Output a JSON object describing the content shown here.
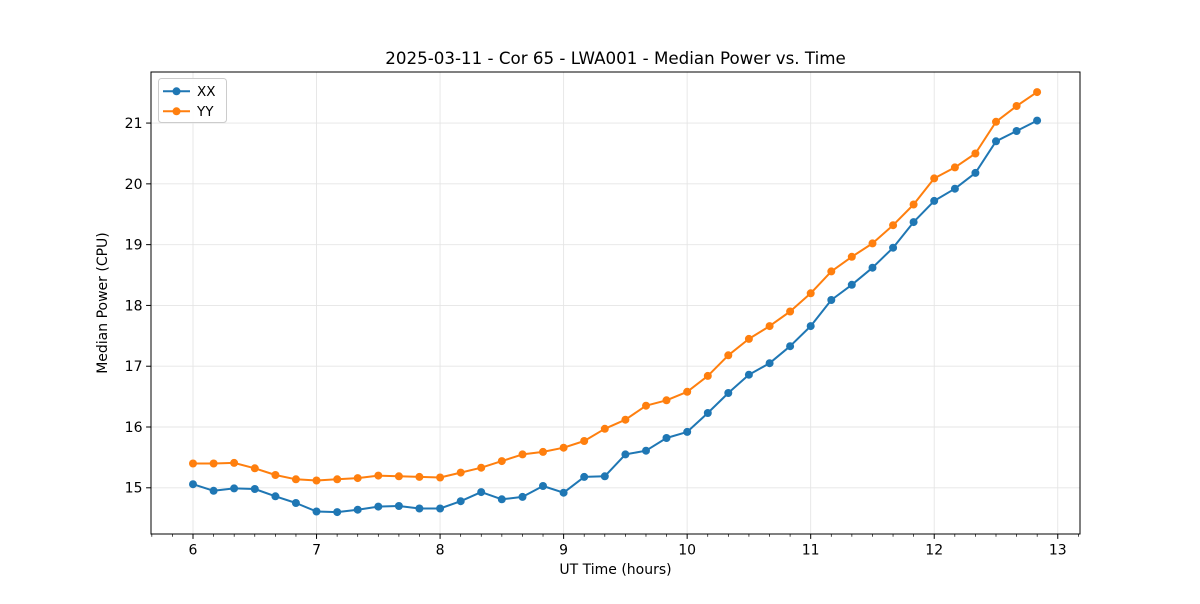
{
  "chart_data": {
    "type": "line",
    "title": "2025-03-11 - Cor 65 - LWA001 - Median Power vs. Time",
    "xlabel": "UT Time (hours)",
    "ylabel": "Median Power (CPU)",
    "xlim": [
      5.66,
      13.18
    ],
    "ylim": [
      14.24,
      21.84
    ],
    "xticks": [
      6,
      7,
      8,
      9,
      10,
      11,
      12,
      13
    ],
    "yticks": [
      15,
      16,
      17,
      18,
      19,
      20,
      21
    ],
    "x_minor_step_hours": 0.1667,
    "grid": true,
    "grid_color": "#e5e5e5",
    "legend_position": "upper left",
    "x": [
      6.0,
      6.167,
      6.333,
      6.5,
      6.667,
      6.833,
      7.0,
      7.167,
      7.333,
      7.5,
      7.667,
      7.833,
      8.0,
      8.167,
      8.333,
      8.5,
      8.667,
      8.833,
      9.0,
      9.167,
      9.333,
      9.5,
      9.667,
      9.833,
      10.0,
      10.167,
      10.333,
      10.5,
      10.667,
      10.833,
      11.0,
      11.167,
      11.333,
      11.5,
      11.667,
      11.833,
      12.0,
      12.167,
      12.333,
      12.5,
      12.667,
      12.833
    ],
    "series": [
      {
        "name": "XX",
        "color": "#1f77b4",
        "values": [
          15.06,
          14.95,
          14.99,
          14.98,
          14.86,
          14.75,
          14.61,
          14.6,
          14.64,
          14.69,
          14.7,
          14.66,
          14.66,
          14.78,
          14.93,
          14.81,
          14.85,
          15.03,
          14.92,
          15.18,
          15.19,
          15.55,
          15.61,
          15.82,
          15.92,
          16.23,
          16.56,
          16.86,
          17.05,
          17.33,
          17.66,
          18.09,
          18.34,
          18.62,
          18.95,
          19.37,
          19.72,
          19.92,
          20.18,
          20.7,
          20.87,
          21.04
        ]
      },
      {
        "name": "YY",
        "color": "#ff7f0e",
        "values": [
          15.4,
          15.4,
          15.41,
          15.32,
          15.21,
          15.14,
          15.12,
          15.14,
          15.16,
          15.2,
          15.19,
          15.18,
          15.17,
          15.25,
          15.33,
          15.44,
          15.55,
          15.59,
          15.66,
          15.77,
          15.97,
          16.12,
          16.35,
          16.44,
          16.58,
          16.84,
          17.18,
          17.45,
          17.66,
          17.9,
          18.2,
          18.56,
          18.8,
          19.02,
          19.32,
          19.66,
          20.09,
          20.27,
          20.5,
          21.02,
          21.28,
          21.51
        ]
      }
    ]
  }
}
